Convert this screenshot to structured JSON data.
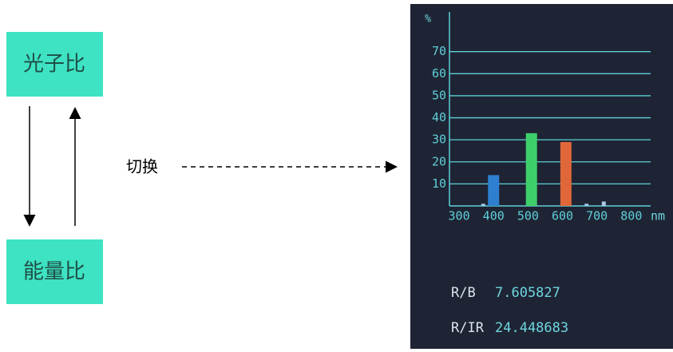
{
  "diagram": {
    "top_box": "光子比",
    "bottom_box": "能量比",
    "switch_label": "切换"
  },
  "readouts": [
    {
      "label": "R/B",
      "value": 7.605827
    },
    {
      "label": "R/IR",
      "value": 24.448683
    }
  ],
  "chart_data": {
    "type": "bar",
    "y_label": "%",
    "x_unit": "nm",
    "x": [
      370,
      400,
      510,
      610,
      670,
      720
    ],
    "values": [
      1,
      14,
      33,
      29,
      1,
      2
    ],
    "colors": [
      "#9fc7e8",
      "#2f7fd0",
      "#3fcf6a",
      "#e0673a",
      "#9fc7e8",
      "#a9c9e6"
    ],
    "xlim": [
      272,
      856
    ],
    "xticks": [
      300,
      400,
      500,
      600,
      700,
      800
    ],
    "ylim": [
      0,
      88
    ],
    "yticks": [
      10,
      20,
      30,
      40,
      50,
      60,
      70
    ],
    "grid": true
  }
}
